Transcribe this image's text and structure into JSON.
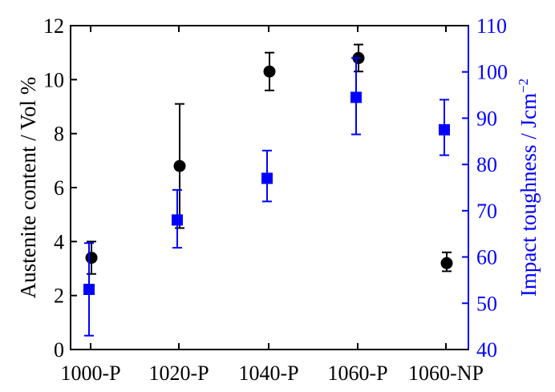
{
  "chart_data": {
    "type": "scatter",
    "categories": [
      "1000-P",
      "1020-P",
      "1040-P",
      "1060-P",
      "1060-NP"
    ],
    "y_left": {
      "label": "Austenite content / Vol %",
      "lim": [
        0,
        12
      ],
      "ticks": [
        0,
        2,
        4,
        6,
        8,
        10,
        12
      ],
      "color": "#000000"
    },
    "y_right": {
      "label_main": "Impact toughness / Jcm",
      "label_sup": "−2",
      "lim": [
        40,
        110
      ],
      "ticks": [
        40,
        50,
        60,
        70,
        80,
        90,
        100,
        110
      ],
      "color": "#0000ff"
    },
    "series": [
      {
        "axis": "left",
        "marker": "circle",
        "color": "#000000",
        "values": [
          3.4,
          6.8,
          10.3,
          10.8,
          3.2
        ],
        "err_low": [
          2.8,
          4.5,
          9.6,
          10.3,
          2.9
        ],
        "err_high": [
          4.0,
          9.1,
          11.0,
          11.3,
          3.6
        ]
      },
      {
        "axis": "right",
        "marker": "square",
        "color": "#0000ff",
        "values": [
          53,
          68,
          77,
          94.5,
          87.5
        ],
        "err_low": [
          43,
          62,
          72,
          86.5,
          82
        ],
        "err_high": [
          63,
          74.5,
          83,
          103,
          94
        ]
      }
    ]
  }
}
